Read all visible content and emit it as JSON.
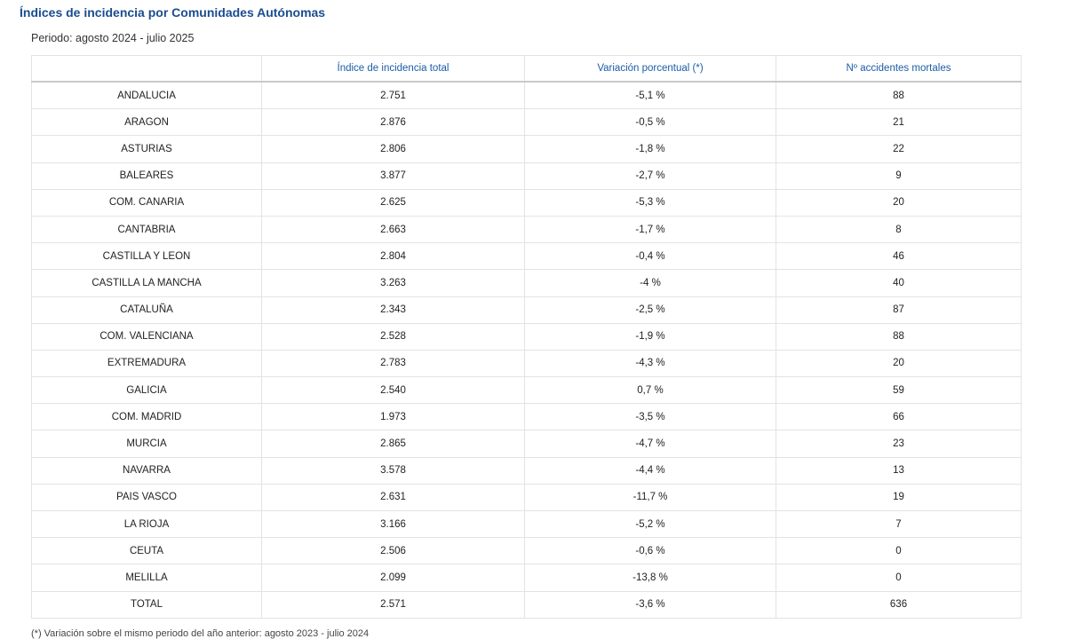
{
  "title": "Índices de incidencia por Comunidades Autónomas",
  "period": "Periodo: agosto 2024 - julio 2025",
  "table": {
    "headers": [
      "",
      "Índice de incidencia total",
      "Variación porcentual (*)",
      "Nº accidentes mortales"
    ],
    "rows": [
      [
        "ANDALUCIA",
        "2.751",
        "-5,1 %",
        "88"
      ],
      [
        "ARAGON",
        "2.876",
        "-0,5 %",
        "21"
      ],
      [
        "ASTURIAS",
        "2.806",
        "-1,8 %",
        "22"
      ],
      [
        "BALEARES",
        "3.877",
        "-2,7 %",
        "9"
      ],
      [
        "COM. CANARIA",
        "2.625",
        "-5,3 %",
        "20"
      ],
      [
        "CANTABRIA",
        "2.663",
        "-1,7 %",
        "8"
      ],
      [
        "CASTILLA Y LEON",
        "2.804",
        "-0,4 %",
        "46"
      ],
      [
        "CASTILLA LA MANCHA",
        "3.263",
        "-4 %",
        "40"
      ],
      [
        "CATALUÑA",
        "2.343",
        "-2,5 %",
        "87"
      ],
      [
        "COM. VALENCIANA",
        "2.528",
        "-1,9 %",
        "88"
      ],
      [
        "EXTREMADURA",
        "2.783",
        "-4,3 %",
        "20"
      ],
      [
        "GALICIA",
        "2.540",
        "0,7 %",
        "59"
      ],
      [
        "COM. MADRID",
        "1.973",
        "-3,5 %",
        "66"
      ],
      [
        "MURCIA",
        "2.865",
        "-4,7 %",
        "23"
      ],
      [
        "NAVARRA",
        "3.578",
        "-4,4 %",
        "13"
      ],
      [
        "PAIS VASCO",
        "2.631",
        "-11,7 %",
        "19"
      ],
      [
        "LA RIOJA",
        "3.166",
        "-5,2 %",
        "7"
      ],
      [
        "CEUTA",
        "2.506",
        "-0,6 %",
        "0"
      ],
      [
        "MELILLA",
        "2.099",
        "-13,8 %",
        "0"
      ],
      [
        "TOTAL",
        "2.571",
        "-3,6 %",
        "636"
      ]
    ]
  },
  "footnote": "(*) Variación sobre el mismo periodo del año anterior: agosto 2023 - julio 2024"
}
